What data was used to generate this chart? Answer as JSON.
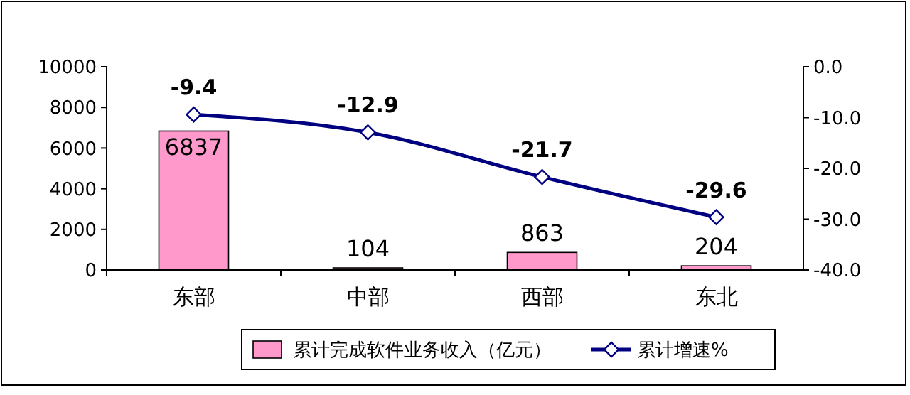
{
  "chart_data": {
    "type": "bar",
    "categories": [
      "东部",
      "中部",
      "西部",
      "东北"
    ],
    "series": [
      {
        "name": "累计完成软件业务收入（亿元）",
        "color": "#ff99cc",
        "values": [
          6837,
          104,
          863,
          204
        ]
      },
      {
        "name": "累计增速%",
        "type": "line",
        "axis": "y2",
        "color": "#000080",
        "values": [
          -9.4,
          -12.9,
          -21.7,
          -29.6
        ]
      }
    ],
    "ylim": [
      0,
      10000
    ],
    "yticks": [
      0,
      2000,
      4000,
      6000,
      8000,
      10000
    ],
    "y2lim": [
      -40,
      0
    ],
    "y2ticks": [
      {
        "value": -40,
        "label": "-40.0"
      },
      {
        "value": -30,
        "label": "-30.0"
      },
      {
        "value": -20,
        "label": "-20.0"
      },
      {
        "value": -10,
        "label": "-10.0"
      },
      {
        "value": 0,
        "label": "0.0"
      }
    ],
    "marker": "diamond",
    "data_labels": true,
    "legend": "bottom",
    "grid": false
  }
}
